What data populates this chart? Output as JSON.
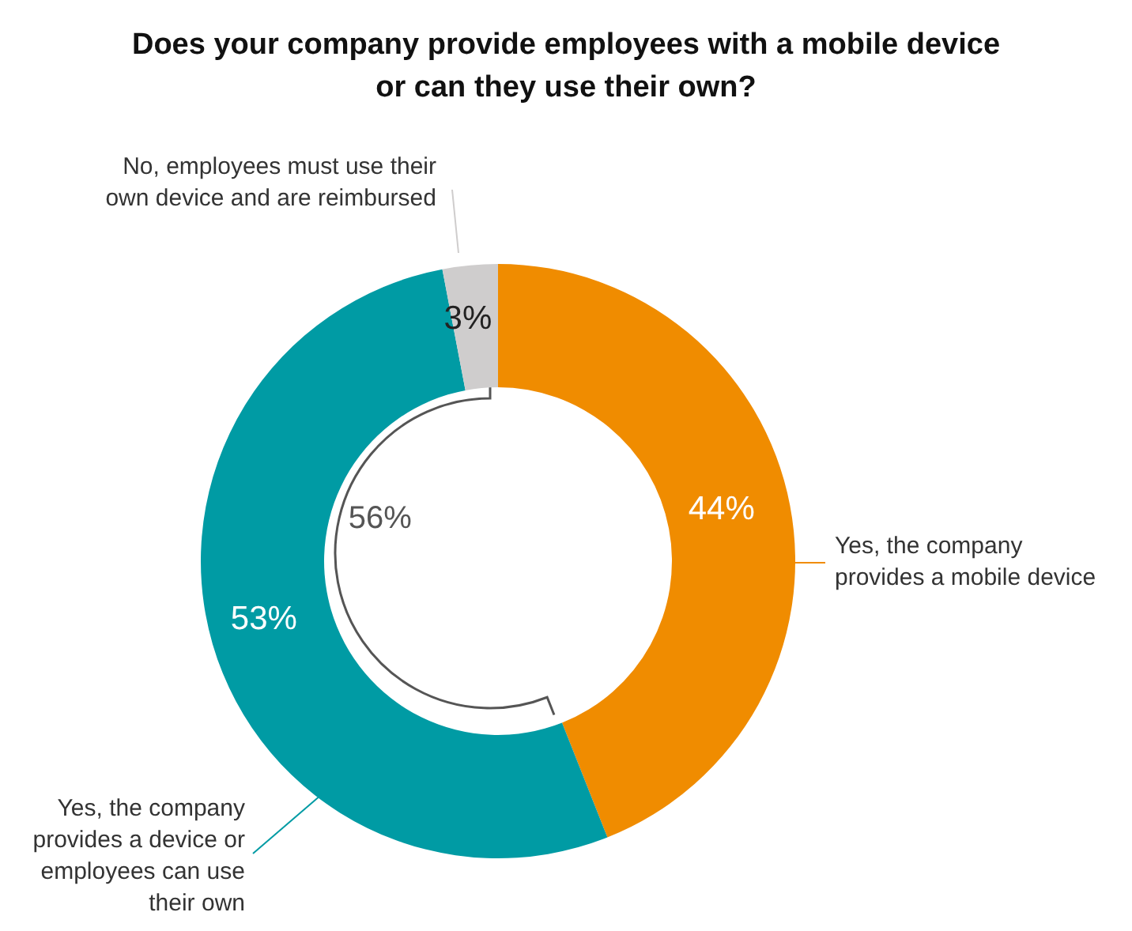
{
  "chart_data": {
    "type": "donut",
    "title": "Does your company provide employees with a mobile device or can they use their own?",
    "categories": [
      "Yes, the company provides a mobile device",
      "Yes, the company provides a device or employees can use their own",
      "No, employees must use their own device and are reimbursed"
    ],
    "values": [
      44,
      53,
      3
    ],
    "colors": [
      "#f08c00",
      "#009ba4",
      "#cfcdcd"
    ],
    "value_labels": [
      "44%",
      "53%",
      "3%"
    ],
    "annotations": [
      "56%"
    ],
    "legend": false
  }
}
